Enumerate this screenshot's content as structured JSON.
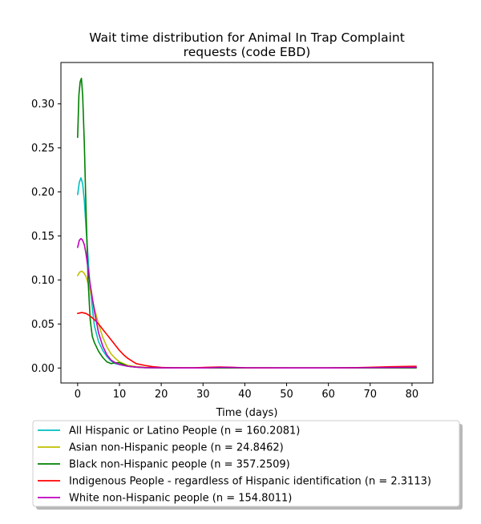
{
  "chart_data": {
    "type": "line",
    "title_lines": [
      "Wait time distribution  for Animal In Trap Complaint",
      "requests (code EBD)"
    ],
    "xlabel": "Time (days)",
    "ylabel": "",
    "xlim": [
      -4,
      85
    ],
    "ylim": [
      -0.017,
      0.347
    ],
    "x_ticks": [
      0,
      10,
      20,
      30,
      40,
      50,
      60,
      70,
      80
    ],
    "x_tick_labels": [
      "0",
      "10",
      "20",
      "30",
      "40",
      "50",
      "60",
      "70",
      "80"
    ],
    "y_ticks": [
      0.0,
      0.05,
      0.1,
      0.15,
      0.2,
      0.25,
      0.3
    ],
    "y_tick_labels": [
      "0.00",
      "0.05",
      "0.10",
      "0.15",
      "0.20",
      "0.25",
      "0.30"
    ],
    "grid": false,
    "legend_placement": "below plot",
    "series": [
      {
        "name": "All Hispanic or Latino People (n = 160.2081)",
        "color": "#00bfbf",
        "x": [
          0,
          0.4,
          0.8,
          1.2,
          1.6,
          2,
          3,
          4,
          5,
          6,
          7,
          8,
          9,
          10,
          12,
          14,
          16,
          20,
          25,
          30,
          35,
          40,
          50,
          60,
          70,
          75,
          81
        ],
        "y": [
          0.197,
          0.211,
          0.216,
          0.209,
          0.19,
          0.16,
          0.09,
          0.048,
          0.03,
          0.02,
          0.013,
          0.008,
          0.005,
          0.004,
          0.002,
          0.001,
          0.0005,
          0.0002,
          0.0001,
          0.0001,
          0.0002,
          0.0001,
          0.0001,
          0.0001,
          0.0005,
          0.0008,
          0.001
        ]
      },
      {
        "name": "Asian non-Hispanic people (n = 24.8462)",
        "color": "#bfbf00",
        "x": [
          0,
          0.5,
          1,
          1.5,
          2,
          3,
          4,
          5,
          6,
          7,
          8,
          9,
          10,
          12,
          14,
          16,
          20,
          25,
          30,
          40,
          50,
          60,
          70,
          81
        ],
        "y": [
          0.105,
          0.109,
          0.11,
          0.108,
          0.104,
          0.088,
          0.068,
          0.05,
          0.035,
          0.024,
          0.016,
          0.011,
          0.007,
          0.003,
          0.0015,
          0.0008,
          0.0003,
          0.0001,
          0.0001,
          0.0001,
          0.0001,
          0.0001,
          0.0002,
          0.0004
        ]
      },
      {
        "name": "Black non-Hispanic people (n = 357.2509)",
        "color": "#008000",
        "x": [
          0,
          0.3,
          0.6,
          0.9,
          1.2,
          1.6,
          2,
          2.5,
          3,
          3.5,
          4,
          5,
          6,
          7,
          8,
          9,
          10,
          11,
          12,
          14,
          16,
          20,
          25,
          30,
          40,
          50,
          60,
          70,
          81
        ],
        "y": [
          0.262,
          0.31,
          0.325,
          0.329,
          0.31,
          0.255,
          0.18,
          0.1,
          0.055,
          0.036,
          0.029,
          0.019,
          0.012,
          0.007,
          0.005,
          0.006,
          0.006,
          0.004,
          0.002,
          0.001,
          0.0005,
          0.0002,
          0.0001,
          0.0001,
          0.0001,
          0.0001,
          0.0001,
          0.0001,
          0.0001
        ]
      },
      {
        "name": "Indigenous People - regardless of Hispanic identification (n = 2.3113)",
        "color": "#ff0000",
        "x": [
          0,
          1,
          2,
          3,
          4,
          5,
          6,
          7,
          8,
          9,
          10,
          11,
          12,
          13,
          14,
          16,
          18,
          20,
          22,
          25,
          28,
          31,
          34,
          37,
          40,
          45,
          50,
          60,
          65,
          70,
          75,
          81
        ],
        "y": [
          0.062,
          0.063,
          0.062,
          0.059,
          0.055,
          0.05,
          0.044,
          0.038,
          0.032,
          0.026,
          0.02,
          0.015,
          0.011,
          0.008,
          0.005,
          0.003,
          0.0015,
          0.0007,
          0.0003,
          0.0002,
          0.0003,
          0.0008,
          0.0012,
          0.0008,
          0.0003,
          0.0001,
          0.0001,
          0.0001,
          0.0003,
          0.0008,
          0.0015,
          0.002
        ]
      },
      {
        "name": "White non-Hispanic people (n = 154.8011)",
        "color": "#bf00bf",
        "x": [
          0,
          0.4,
          0.8,
          1.2,
          1.6,
          2,
          3,
          4,
          5,
          6,
          7,
          8,
          9,
          10,
          12,
          14,
          16,
          20,
          25,
          30,
          35,
          40,
          50,
          60,
          70,
          75,
          81
        ],
        "y": [
          0.137,
          0.145,
          0.147,
          0.145,
          0.14,
          0.13,
          0.095,
          0.065,
          0.04,
          0.025,
          0.015,
          0.009,
          0.006,
          0.004,
          0.002,
          0.001,
          0.0005,
          0.0002,
          0.0001,
          0.0001,
          0.0008,
          0.0003,
          0.0001,
          0.0001,
          0.0004,
          0.0006,
          0.0008
        ]
      }
    ]
  }
}
